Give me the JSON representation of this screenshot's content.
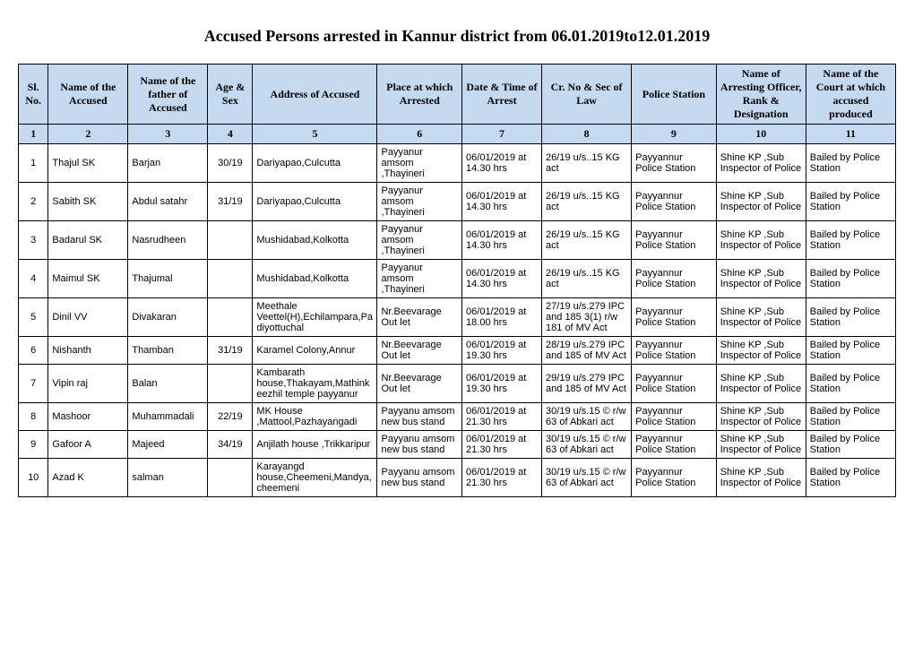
{
  "title": "Accused Persons arrested in   Kannur  district from   06.01.2019to12.01.2019",
  "headers": [
    "Sl. No.",
    "Name of the Accused",
    "Name of the father of Accused",
    "Age & Sex",
    "Address of Accused",
    "Place at which Arrested",
    "Date & Time of Arrest",
    "Cr. No & Sec of Law",
    "Police Station",
    "Name of Arresting Officer, Rank & Designation",
    "Name of the Court at which accused produced"
  ],
  "header_numbers": [
    "1",
    "2",
    "3",
    "4",
    "5",
    "6",
    "7",
    "8",
    "9",
    "10",
    "11"
  ],
  "rows": [
    {
      "sl": "1",
      "name": "Thajul SK",
      "father": "Barjan",
      "age": "30/19",
      "addr": "Dariyapao,Culcutta",
      "place": "Payyanur amsom ,Thayineri",
      "datetime": "06/01/2019 at 14.30 hrs",
      "crno": "26/19 u/s..15 KG act",
      "station": "Payyannur Police Station",
      "officer": "Shine KP  ,Sub Inspector of Police",
      "court": "Bailed by Police Station"
    },
    {
      "sl": "2",
      "name": "Sabith SK",
      "father": "Abdul satahr",
      "age": "31/19",
      "addr": "Dariyapao,Culcutta",
      "place": "Payyanur amsom ,Thayineri",
      "datetime": "06/01/2019 at 14.30 hrs",
      "crno": "26/19 u/s..15 KG act",
      "station": "Payyannur Police Station",
      "officer": "Shine KP  ,Sub Inspector of Police",
      "court": "Bailed by Police Station"
    },
    {
      "sl": "3",
      "name": "Badarul SK",
      "father": "Nasrudheen",
      "age": "",
      "addr": "Mushidabad,Kolkotta",
      "place": "Payyanur amsom ,Thayineri",
      "datetime": "06/01/2019 at 14.30 hrs",
      "crno": "26/19 u/s..15 KG act",
      "station": "Payyannur Police Station",
      "officer": "Shine KP  ,Sub Inspector of Police",
      "court": "Bailed by Police Station"
    },
    {
      "sl": "4",
      "name": "Maimul SK",
      "father": "Thajumal",
      "age": "",
      "addr": "Mushidabad,Kolkotta",
      "place": "Payyanur amsom ,Thayineri",
      "datetime": "06/01/2019 at 14.30 hrs",
      "crno": "26/19 u/s..15 KG act",
      "station": "Payyannur Police Station",
      "officer": "Shine KP  ,Sub Inspector of Police",
      "court": "Bailed by Police Station"
    },
    {
      "sl": "5",
      "name": "Dinil  VV",
      "father": "Divakaran",
      "age": "",
      "addr": "Meethale Veettel(H),Echilampara,Padiyottuchal",
      "place": "Nr.Beevarage Out let",
      "datetime": "06/01/2019 at 18.00 hrs",
      "crno": "27/19 u/s.279 IPC and 185 3(1) r/w 181 of MV Act",
      "station": "Payyannur Police Station",
      "officer": "Shine KP  ,Sub Inspector of Police",
      "court": "Bailed by Police Station"
    },
    {
      "sl": "6",
      "name": "Nishanth",
      "father": "Thamban",
      "age": "31/19",
      "addr": "Karamel Colony,Annur",
      "place": "Nr.Beevarage Out let",
      "datetime": "06/01/2019 at 19.30 hrs",
      "crno": "28/19 u/s.279 IPC and 185 of MV Act",
      "station": "Payyannur Police Station",
      "officer": "Shine KP  ,Sub Inspector of Police",
      "court": "Bailed by Police Station"
    },
    {
      "sl": "7",
      "name": "Vipin raj",
      "father": "Balan",
      "age": "",
      "addr": "Kambarath house,Thakayam,Mathinkeezhil temple payyanur",
      "place": "Nr.Beevarage Out let",
      "datetime": "06/01/2019 at 19.30 hrs",
      "crno": "29/19 u/s.279 IPC and 185 of MV Act",
      "station": "Payyannur Police Station",
      "officer": "Shine KP  ,Sub Inspector of Police",
      "court": "Bailed by Police Station"
    },
    {
      "sl": "8",
      "name": "Mashoor",
      "father": "Muhammadali",
      "age": "22/19",
      "addr": "MK House ,Mattool,Pazhayangadi",
      "place": "Payyanu amsom new bus stand",
      "datetime": "06/01/2019 at 21.30 hrs",
      "crno": "30/19 u/s.15 © r/w 63 of Abkari act",
      "station": "Payyannur Police Station",
      "officer": "Shine KP  ,Sub Inspector of Police",
      "court": "Bailed by Police Station"
    },
    {
      "sl": "9",
      "name": "Gafoor A",
      "father": "Majeed",
      "age": "34/19",
      "addr": "Anjilath house ,Trikkaripur",
      "place": "Payyanu amsom new bus stand",
      "datetime": "06/01/2019 at 21.30 hrs",
      "crno": "30/19 u/s.15 © r/w 63 of Abkari act",
      "station": "Payyannur Police Station",
      "officer": "Shine KP ,Sub Inspector of Police",
      "court": "Bailed by Police Station"
    },
    {
      "sl": "10",
      "name": "Azad K",
      "father": "salman",
      "age": "",
      "addr": "Karayangd house,Cheemeni,Mandya,cheemeni",
      "place": "Payyanu amsom new bus stand",
      "datetime": "06/01/2019 at 21.30 hrs",
      "crno": "30/19 u/s.15 © r/w 63 of Abkari act",
      "station": "Payyannur Police Station",
      "officer": "Shine KP ,Sub Inspector of Police",
      "court": "Bailed by Police Station"
    }
  ],
  "style": {
    "header_bg": "#c5d9f1",
    "border_color": "#000000",
    "title_fontsize": 18,
    "header_fontsize": 12,
    "cell_fontsize": 11
  }
}
